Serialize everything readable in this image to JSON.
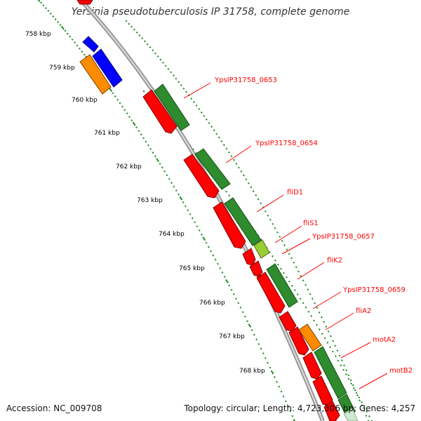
{
  "title": "Yersinia pseudotuberculosis IP 31758, complete genome",
  "accession": {
    "label": "Accession:",
    "value": "NC_009708"
  },
  "topology_line": "Topology: circular; Length: 4,723,306 bp; Genes: 4,257",
  "colors": {
    "backbone": "#999999",
    "tick": "#228b22",
    "label_text": "#ff0000",
    "leader_line": "#ff0000",
    "gene_red": "#ff0000",
    "gene_green": "#2e8b2e",
    "gene_blue": "#0000ff",
    "gene_orange": "#ff8c00",
    "gene_lime": "#9acd32"
  },
  "kbp_labels": [
    "758 kbp",
    "759 kbp",
    "760 kbp",
    "761 kbp",
    "762 kbp",
    "763 kbp",
    "764 kbp",
    "765 kbp",
    "766 kbp",
    "767 kbp",
    "768 kbp"
  ],
  "gene_labels": [
    "YpsIP31758_0653",
    "YpsIP31758_0654",
    "fliD1",
    "fliS1",
    "YpsIP31758_0657",
    "fliK2",
    "YpsIP31758_0659",
    "fliA2",
    "motA2",
    "motB2"
  ]
}
